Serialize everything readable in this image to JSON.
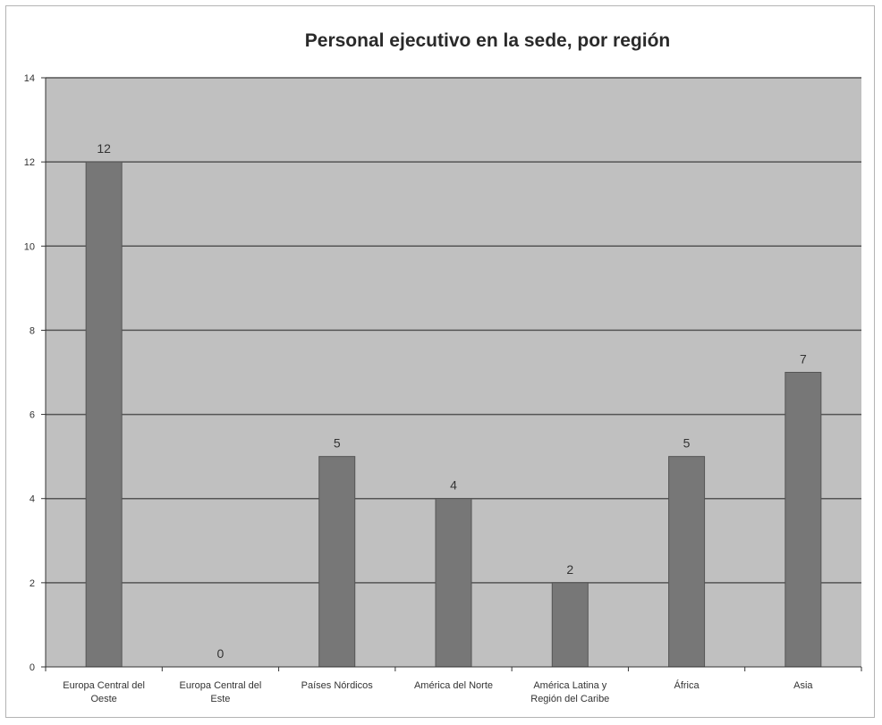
{
  "chart_data": {
    "type": "bar",
    "title": "Personal ejecutivo en la sede, por región",
    "xlabel": "",
    "ylabel": "",
    "categories": [
      "Europa Central del Oeste",
      "Europa Central del Este",
      "Países Nórdicos",
      "América del Norte",
      "América Latina y Región del Caribe",
      "África",
      "Asia"
    ],
    "category_lines": [
      [
        "Europa Central del",
        "Oeste"
      ],
      [
        "Europa Central del",
        "Este"
      ],
      [
        "Países Nórdicos"
      ],
      [
        "América del Norte"
      ],
      [
        "América Latina y",
        "Región del Caribe"
      ],
      [
        "África"
      ],
      [
        "Asia"
      ]
    ],
    "values": [
      12,
      0,
      5,
      4,
      2,
      5,
      7
    ],
    "data_labels": [
      "12",
      "0",
      "5",
      "4",
      "2",
      "5",
      "7"
    ],
    "ylim": [
      0,
      14
    ],
    "yticks": [
      0,
      2,
      4,
      6,
      8,
      10,
      12,
      14
    ],
    "grid": true,
    "legend": "none",
    "colors": {
      "plot_background": "#c0c0c0",
      "bar": "#777777",
      "gridline": "#555555"
    }
  }
}
